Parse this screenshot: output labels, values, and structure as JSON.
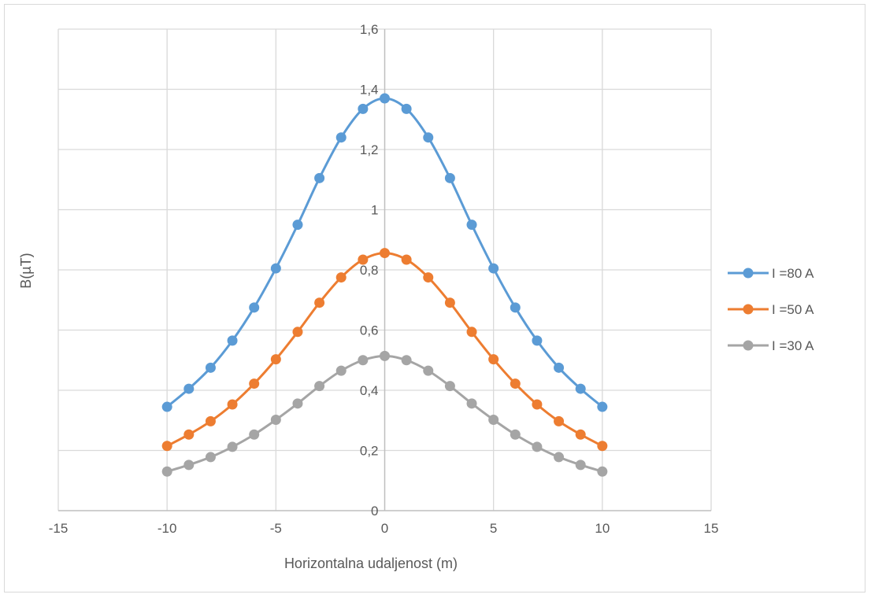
{
  "chart_data": {
    "type": "scatter",
    "title": "",
    "xlabel": "Horizontalna udaljenost (m)",
    "ylabel": "B(µT)",
    "xlim": [
      -15,
      15
    ],
    "ylim": [
      0,
      1.6
    ],
    "x_ticks": [
      -15,
      -10,
      -5,
      0,
      5,
      10,
      15
    ],
    "x_tick_labels": [
      "-15",
      "-10",
      "-5",
      "0",
      "5",
      "10",
      "15"
    ],
    "y_ticks": [
      0,
      0.2,
      0.4,
      0.6,
      0.8,
      1,
      1.2,
      1.4,
      1.6
    ],
    "y_tick_labels": [
      "0",
      "0,2",
      "0,4",
      "0,6",
      "0,8",
      "1",
      "1,2",
      "1,4",
      "1,6"
    ],
    "grid": true,
    "legend_position": "right",
    "smooth_lines": true,
    "x": [
      -10,
      -9,
      -8,
      -7,
      -6,
      -5,
      -4,
      -3,
      -2,
      -1,
      0,
      1,
      2,
      3,
      4,
      5,
      6,
      7,
      8,
      9,
      10
    ],
    "series": [
      {
        "name": "I =80 A",
        "color": "#5b9bd5",
        "values": [
          0.345,
          0.405,
          0.475,
          0.565,
          0.675,
          0.805,
          0.95,
          1.105,
          1.24,
          1.335,
          1.37,
          1.335,
          1.24,
          1.105,
          0.95,
          0.805,
          0.675,
          0.565,
          0.475,
          0.405,
          0.345
        ]
      },
      {
        "name": "I =50 A",
        "color": "#ed7d31",
        "values": [
          0.215,
          0.253,
          0.297,
          0.353,
          0.422,
          0.503,
          0.594,
          0.691,
          0.775,
          0.834,
          0.856,
          0.834,
          0.775,
          0.691,
          0.594,
          0.503,
          0.422,
          0.353,
          0.297,
          0.253,
          0.215
        ]
      },
      {
        "name": "I =30 A",
        "color": "#a5a5a5",
        "values": [
          0.13,
          0.152,
          0.178,
          0.212,
          0.253,
          0.302,
          0.356,
          0.414,
          0.465,
          0.5,
          0.514,
          0.5,
          0.465,
          0.414,
          0.356,
          0.302,
          0.253,
          0.212,
          0.178,
          0.152,
          0.13
        ]
      }
    ]
  }
}
